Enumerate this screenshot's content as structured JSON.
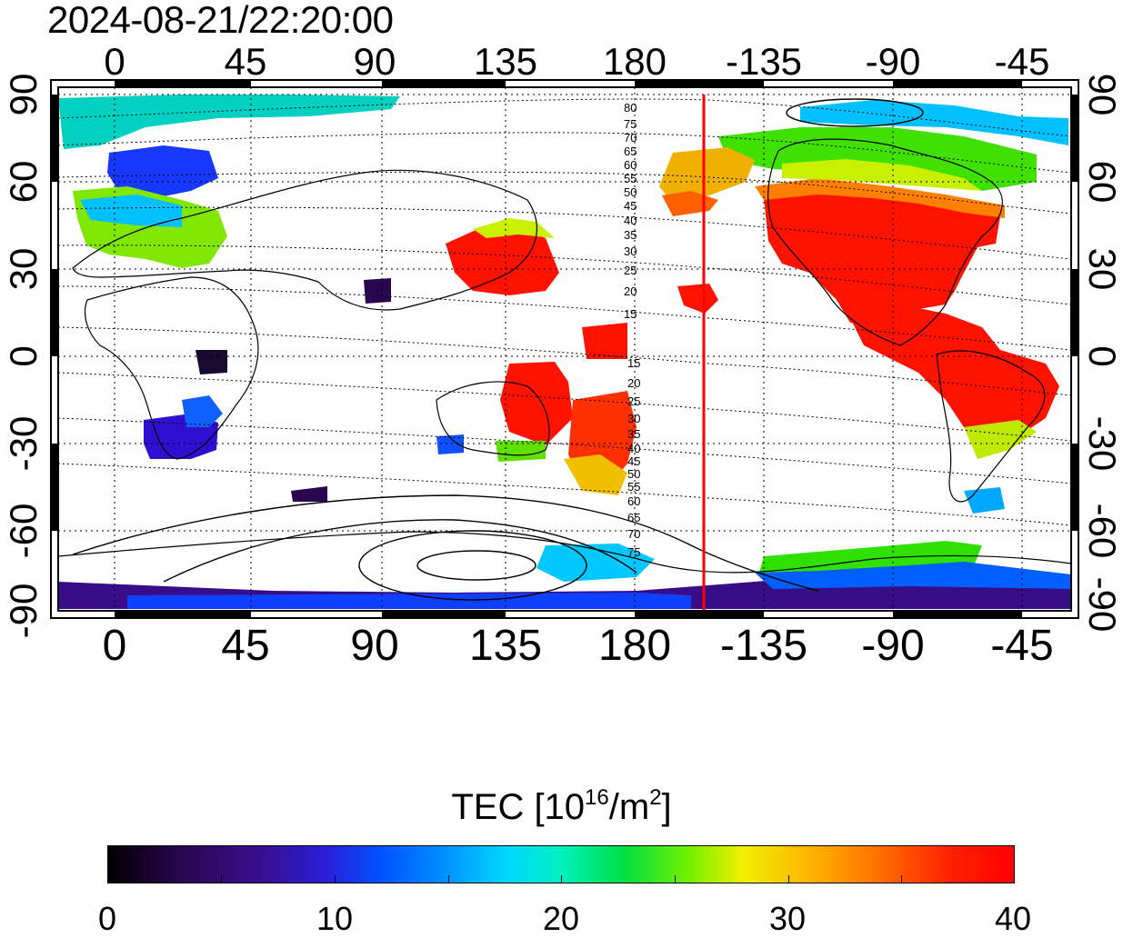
{
  "timestamp": "2024-08-21/22:20:00",
  "top_longitude_ticks": [
    "0",
    "45",
    "90",
    "135",
    "180",
    "-135",
    "-90",
    "-45"
  ],
  "bottom_longitude_ticks": [
    "0",
    "45",
    "90",
    "135",
    "180",
    "-135",
    "-90",
    "-45"
  ],
  "left_latitude_ticks": [
    "90",
    "60",
    "30",
    "0",
    "-30",
    "-60",
    "-90"
  ],
  "right_latitude_ticks": [
    "90",
    "60",
    "30",
    "0",
    "-30",
    "-60",
    "-90"
  ],
  "contour_labels_north": [
    "80",
    "75",
    "70",
    "65",
    "60",
    "55",
    "50",
    "45",
    "40",
    "35",
    "30",
    "25",
    "20",
    "15"
  ],
  "contour_labels_south": [
    "15",
    "20",
    "25",
    "30",
    "35",
    "40",
    "45",
    "50",
    "55",
    "60",
    "65",
    "70",
    "75"
  ],
  "marker_line": {
    "longitude": -155,
    "color": "#ff0000"
  },
  "colorbar": {
    "title_prefix": "TEC  [10",
    "title_exp": "16",
    "title_mid": "/m",
    "title_exp2": "2",
    "title_suffix": "]",
    "min": 0,
    "max": 40,
    "tick_labels": [
      "0",
      "10",
      "20",
      "30",
      "40"
    ]
  },
  "colors": {
    "low": "#000000",
    "mid": "#00e040",
    "high": "#ff0000",
    "coastline": "#000000",
    "grid": "#000000"
  }
}
